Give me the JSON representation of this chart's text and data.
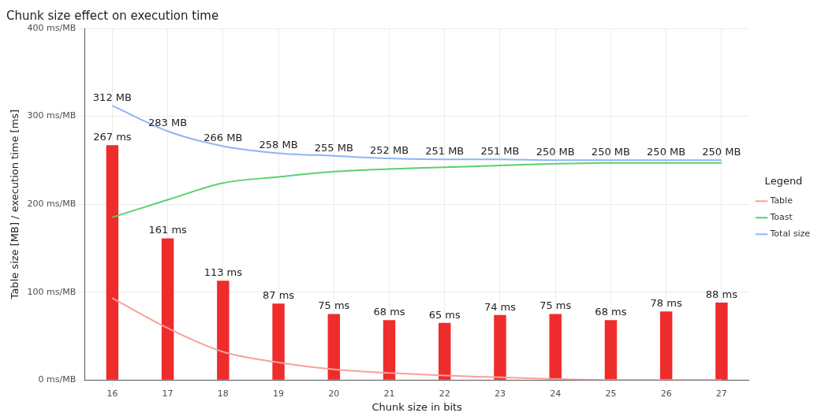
{
  "chart_data": {
    "type": "bar",
    "title": "Chunk size effect on execution time",
    "xlabel": "Chunk size in bits",
    "ylabel": "Table size [MB] / execution time [ms]",
    "legend_title": "Legend",
    "legend": "right",
    "grid": true,
    "marker": "none",
    "categories": [
      "16",
      "17",
      "18",
      "19",
      "20",
      "21",
      "22",
      "23",
      "24",
      "25",
      "26",
      "27"
    ],
    "ylim": [
      0,
      400
    ],
    "yticks": [
      {
        "value": 0,
        "label": "0 ms/MB"
      },
      {
        "value": 100,
        "label": "100 ms/MB"
      },
      {
        "value": 200,
        "label": "200 ms/MB"
      },
      {
        "value": 300,
        "label": "300 ms/MB"
      },
      {
        "value": 400,
        "label": "400 ms/MB"
      }
    ],
    "series": [
      {
        "type": "bar",
        "color": "#ee2c2c",
        "values": [
          267,
          161,
          113,
          87,
          75,
          68,
          65,
          74,
          75,
          68,
          78,
          88
        ],
        "value_labels": [
          "267 ms",
          "161 ms",
          "113 ms",
          "87 ms",
          "75 ms",
          "68 ms",
          "65 ms",
          "74 ms",
          "75 ms",
          "68 ms",
          "78 ms",
          "88 ms"
        ]
      },
      {
        "type": "line",
        "name": "Table",
        "color": "#f8a09a",
        "values": [
          93,
          59,
          32,
          20,
          12,
          8,
          5,
          3,
          1,
          0,
          0,
          0
        ]
      },
      {
        "type": "line",
        "name": "Toast",
        "color": "#5ccf6e",
        "values": [
          185,
          205,
          224,
          231,
          237,
          240,
          242,
          244,
          246,
          247,
          247,
          247
        ]
      },
      {
        "type": "line",
        "name": "Total size",
        "color": "#8fb5f5",
        "values": [
          312,
          283,
          266,
          258,
          255,
          252,
          251,
          251,
          250,
          250,
          250,
          250
        ],
        "value_labels": [
          "312 MB",
          "283 MB",
          "266 MB",
          "258 MB",
          "255 MB",
          "252 MB",
          "251 MB",
          "251 MB",
          "250 MB",
          "250 MB",
          "250 MB",
          "250 MB"
        ]
      }
    ]
  }
}
